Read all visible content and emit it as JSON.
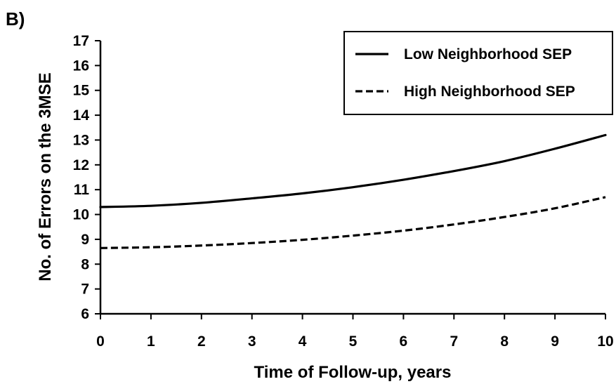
{
  "panel_label": "B)",
  "chart_data": {
    "type": "line",
    "xlabel": "Time of Follow-up, years",
    "ylabel": "No. of Errors on the 3MSE",
    "xlim": [
      0,
      10
    ],
    "ylim": [
      6,
      17
    ],
    "x_ticks": [
      0,
      1,
      2,
      3,
      4,
      5,
      6,
      7,
      8,
      9,
      10
    ],
    "y_ticks": [
      6,
      7,
      8,
      9,
      10,
      11,
      12,
      13,
      14,
      15,
      16,
      17
    ],
    "grid": false,
    "legend_position": "top-right",
    "x": [
      0,
      1,
      2,
      3,
      4,
      5,
      6,
      7,
      8,
      9,
      10
    ],
    "series": [
      {
        "name": "Low Neighborhood SEP",
        "style": "solid",
        "color": "#000000",
        "values": [
          10.3,
          10.35,
          10.47,
          10.65,
          10.85,
          11.1,
          11.4,
          11.75,
          12.15,
          12.65,
          13.2
        ]
      },
      {
        "name": "High Neighborhood SEP",
        "style": "dashed",
        "color": "#000000",
        "values": [
          8.65,
          8.68,
          8.75,
          8.85,
          8.98,
          9.15,
          9.35,
          9.6,
          9.9,
          10.25,
          10.7
        ]
      }
    ]
  }
}
